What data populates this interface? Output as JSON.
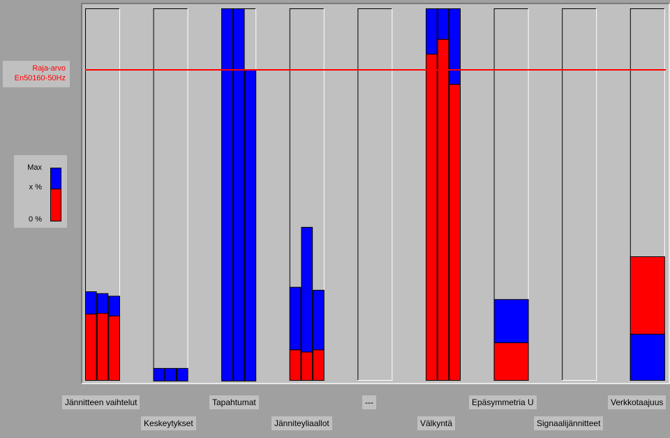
{
  "chart_data": {
    "type": "bar",
    "title": "",
    "xlabel": "",
    "ylabel": "",
    "ylim": [
      0,
      100
    ],
    "limit_line": {
      "label_line1": "Raja-arvo",
      "label_line2": "En50160-50Hz",
      "value": 83.5,
      "color": "#ff0000"
    },
    "legend": {
      "max_label": "Max",
      "x_label": "x %",
      "zero_label": "0 %"
    },
    "colors": {
      "x_percent": "#ff0000",
      "max": "#0000ff",
      "panel": "#c0c0c0"
    },
    "categories": [
      "Jännitteen vaihtelut",
      "Keskeytykset",
      "Tapahtumat",
      "Jänniteyliaallot",
      "---",
      "Välkyntä",
      "Epäsymmetria U",
      "Signaalijännitteet",
      "Verkkotaajuus"
    ],
    "groups": [
      {
        "name": "Jännitteen vaihtelut",
        "bars": [
          {
            "x": 18,
            "max": 24
          },
          {
            "x": 18.2,
            "max": 23.5
          },
          {
            "x": 17.5,
            "max": 22.8
          }
        ]
      },
      {
        "name": "Keskeytykset",
        "bars": [
          {
            "x": 0,
            "max": 3.4
          },
          {
            "x": 0,
            "max": 3.4
          },
          {
            "x": 0,
            "max": 3.4
          }
        ]
      },
      {
        "name": "Tapahtumat",
        "bars": [
          {
            "x": 0,
            "max": 100
          },
          {
            "x": 0,
            "max": 100
          },
          {
            "x": 0,
            "max": 83.5
          }
        ]
      },
      {
        "name": "Jänniteyliaallot",
        "bars": [
          {
            "x": 8.4,
            "max": 25.2
          },
          {
            "x": 7.8,
            "max": 41.3
          },
          {
            "x": 8.4,
            "max": 24.4
          }
        ]
      },
      {
        "name": "---",
        "bars": []
      },
      {
        "name": "Välkyntä",
        "bars": [
          {
            "x": 87.8,
            "max": 100
          },
          {
            "x": 91.8,
            "max": 100
          },
          {
            "x": 79.7,
            "max": 100
          }
        ]
      },
      {
        "name": "Epäsymmetria U",
        "bars": [
          {
            "x": 10.3,
            "max": 21.9
          }
        ]
      },
      {
        "name": "Signaalijännitteet",
        "bars": []
      },
      {
        "name": "Verkkotaajuus",
        "bars": [
          {
            "x": 33.4,
            "max": 12.6
          }
        ]
      }
    ]
  }
}
